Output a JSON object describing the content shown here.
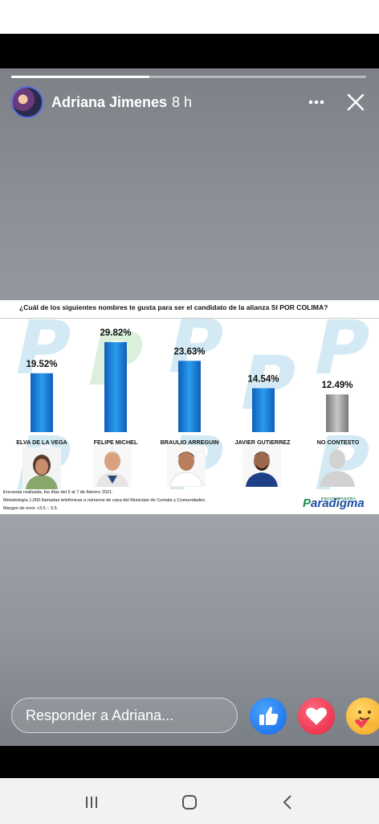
{
  "story": {
    "author": "Adriana Jimenes",
    "time": "8 h",
    "progress": 0.39
  },
  "poll": {
    "title": "¿Cuál de los siguientes nombres te gusta para ser el candidato de la alianza SI POR COLIMA?",
    "candidates": [
      {
        "name": "ELVA DE LA VEGA",
        "value_label": "19.52%"
      },
      {
        "name": "FELIPE MICHEL",
        "value_label": "29.82%"
      },
      {
        "name": "BRAULIO ARREGUIN",
        "value_label": "23.63%"
      },
      {
        "name": "JAVIER GUTIERREZ",
        "value_label": "14.54%"
      },
      {
        "name": "NO CONTESTO",
        "value_label": "12.49%"
      }
    ],
    "footnote_1": "Encuesta realizada,  los días del 5 al 7 de febrero 2021.",
    "footnote_2": "Metodología 1,000 llamadas telefónicas a números de casa del Municipio de Comala y Comunidades.",
    "footnote_3": "Margen de error +3.5 – 3.5.",
    "brand_tag": "ENCUESTADORA",
    "brand_first": "P",
    "brand_rest": "aradigma"
  },
  "chart_data": {
    "type": "bar",
    "title": "¿Cuál de los siguientes nombres te gusta para ser el candidato de la alianza SI POR COLIMA?",
    "categories": [
      "ELVA DE LA VEGA",
      "FELIPE MICHEL",
      "BRAULIO ARREGUIN",
      "JAVIER GUTIERREZ",
      "NO CONTESTO"
    ],
    "values": [
      19.52,
      29.82,
      23.63,
      14.54,
      12.49
    ],
    "xlabel": "",
    "ylabel": "",
    "colors": [
      "#1a7fd6",
      "#1a7fd6",
      "#1a7fd6",
      "#1a7fd6",
      "#9a9a9a"
    ]
  },
  "reply": {
    "placeholder": "Responder a Adriana..."
  },
  "colors": {
    "bar_blue": "#1a7fd6",
    "bar_gray": "#9a9a9a",
    "like_blue": "#1877f2",
    "love_red": "#f33e58"
  }
}
